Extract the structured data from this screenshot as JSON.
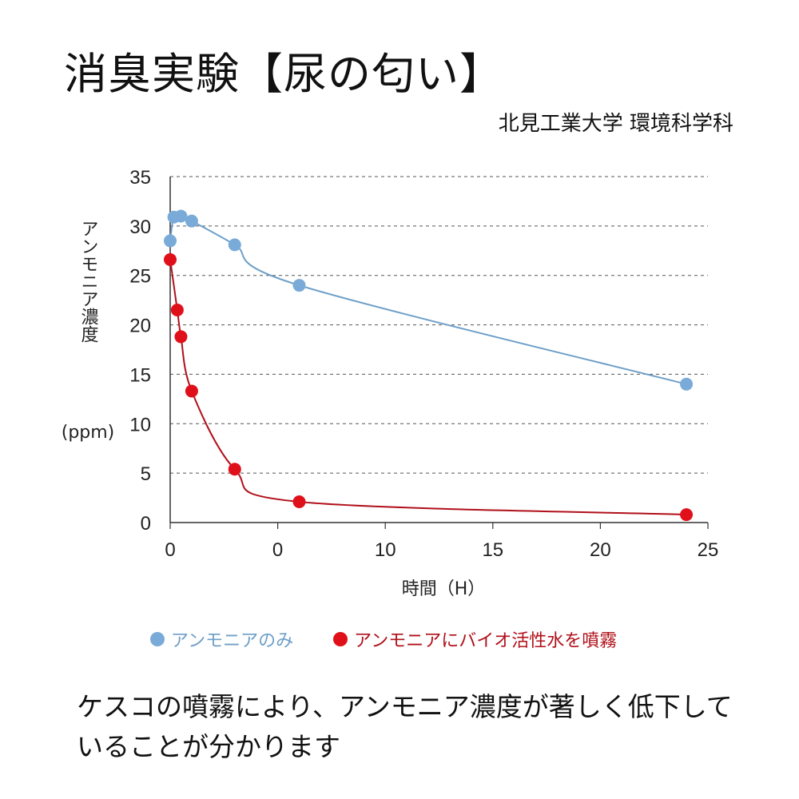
{
  "header": {
    "title": "消臭実験【尿の匂い】",
    "source": "北見工業大学  環境科学科"
  },
  "chart_data": {
    "type": "line",
    "x_tick_labels": [
      "0",
      "0",
      "10",
      "15",
      "20",
      "25"
    ],
    "y_tick_labels": [
      "0",
      "5",
      "10",
      "15",
      "20",
      "25",
      "30",
      "35"
    ],
    "xlim": [
      0,
      25
    ],
    "ylim": [
      0,
      35
    ],
    "ylabel_lines": [
      "アンモニア濃度",
      "(ppm)"
    ],
    "xlabel": "時間（H）",
    "grid": "horizontal dashed",
    "legend_position": "bottom",
    "series": [
      {
        "name": "アンモニアのみ",
        "color": "#7aabd8",
        "line_color": "#6e9fc8",
        "x": [
          0,
          0.17,
          0.5,
          1,
          3,
          6,
          24
        ],
        "y": [
          28.5,
          30.9,
          31.0,
          30.5,
          28.1,
          24.0,
          14.0
        ]
      },
      {
        "name": "アンモニアにバイオ活性水を噴霧",
        "color": "#e0101a",
        "line_color": "#b0101a",
        "x": [
          0,
          0.33,
          0.5,
          1,
          3,
          6,
          24
        ],
        "y": [
          26.6,
          21.5,
          18.8,
          13.3,
          5.4,
          2.1,
          0.8
        ]
      }
    ]
  },
  "note": "ケスコの噴霧により、アンモニア濃度が著しく低下していることが分かります"
}
